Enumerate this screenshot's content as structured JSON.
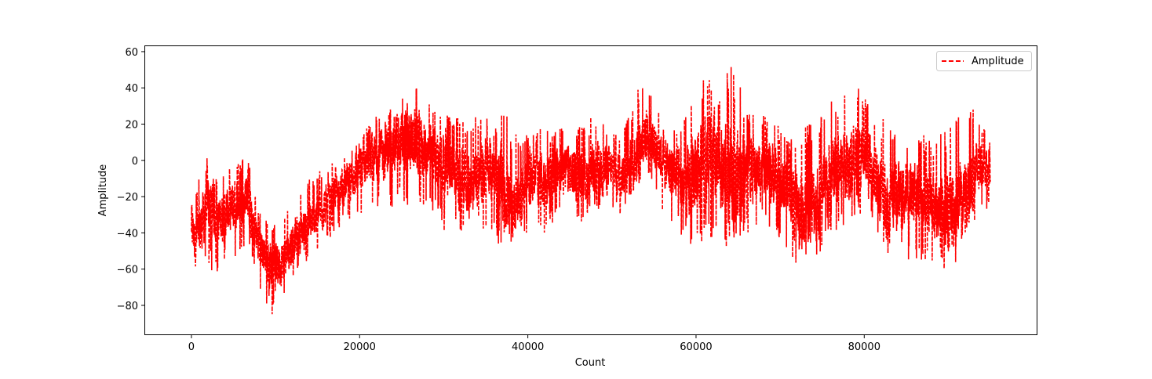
{
  "chart_data": {
    "type": "line",
    "title": "",
    "xlabel": "Count",
    "ylabel": "Amplitude",
    "xlim": [
      -5500,
      100500
    ],
    "ylim": [
      -96,
      63
    ],
    "xticks": [
      0,
      20000,
      40000,
      60000,
      80000
    ],
    "yticks": [
      -80,
      -60,
      -40,
      -20,
      0,
      20,
      40,
      60
    ],
    "grid": false,
    "legend_position": "top-right",
    "series": [
      {
        "name": "Amplitude",
        "color": "#ff0000",
        "linestyle": "dashed",
        "n_points": 95000,
        "envelope_x": [
          0,
          500,
          1000,
          1500,
          2000,
          2500,
          3000,
          4000,
          5000,
          6000,
          6500,
          7000,
          8000,
          9000,
          10000,
          11000,
          12000,
          13000,
          14000,
          15000,
          16000,
          17000,
          18000,
          19000,
          20000,
          21000,
          22000,
          23000,
          24000,
          25000,
          26000,
          27000,
          28000,
          29000,
          30000,
          31000,
          32000,
          33000,
          34000,
          35000,
          36000,
          37000,
          38000,
          39000,
          40000,
          41000,
          42000,
          43000,
          44000,
          45000,
          46000,
          47000,
          48000,
          49000,
          50000,
          51000,
          52000,
          53000,
          54000,
          55000,
          56000,
          57000,
          58000,
          59000,
          60000,
          61000,
          62000,
          63000,
          64000,
          65000,
          66000,
          67000,
          68000,
          69000,
          70000,
          71000,
          72000,
          73000,
          74000,
          75000,
          76000,
          77000,
          78000,
          79000,
          80000,
          81000,
          82000,
          83000,
          84000,
          85000,
          86000,
          87000,
          88000,
          89000,
          90000,
          91000,
          92000,
          93000,
          94000,
          95000
        ],
        "envelope_mean": [
          -35,
          -45,
          -40,
          -30,
          -20,
          -25,
          -35,
          -30,
          -25,
          -25,
          -15,
          -30,
          -45,
          -55,
          -58,
          -55,
          -45,
          -40,
          -35,
          -30,
          -25,
          -18,
          -15,
          -10,
          -5,
          0,
          2,
          5,
          8,
          10,
          12,
          8,
          5,
          2,
          0,
          -5,
          -10,
          -12,
          -10,
          -5,
          -5,
          -15,
          -25,
          -20,
          -10,
          -10,
          -12,
          -8,
          -5,
          -5,
          -10,
          -10,
          -8,
          -5,
          -5,
          -8,
          -5,
          5,
          15,
          10,
          0,
          -5,
          -10,
          -15,
          -5,
          0,
          0,
          -5,
          -10,
          -10,
          -5,
          -5,
          -5,
          -5,
          -15,
          -15,
          -25,
          -30,
          -25,
          -20,
          -10,
          -5,
          0,
          0,
          0,
          -5,
          -20,
          -25,
          -20,
          -20,
          -15,
          -20,
          -25,
          -30,
          -30,
          -25,
          -20,
          -10,
          0,
          -10
        ],
        "envelope_max": [
          -20,
          -15,
          -5,
          5,
          8,
          -5,
          -10,
          -5,
          0,
          0,
          5,
          -5,
          -25,
          -30,
          -35,
          -30,
          -25,
          -15,
          -10,
          -5,
          -5,
          0,
          5,
          10,
          15,
          20,
          25,
          30,
          35,
          40,
          35,
          45,
          35,
          30,
          25,
          25,
          25,
          20,
          25,
          25,
          15,
          30,
          20,
          15,
          15,
          15,
          20,
          15,
          20,
          15,
          20,
          20,
          30,
          25,
          15,
          15,
          25,
          40,
          50,
          35,
          20,
          20,
          25,
          30,
          40,
          45,
          55,
          40,
          55,
          50,
          30,
          25,
          25,
          30,
          20,
          10,
          20,
          25,
          25,
          30,
          40,
          35,
          40,
          43,
          35,
          30,
          25,
          20,
          15,
          10,
          15,
          15,
          10,
          15,
          20,
          25,
          30,
          35,
          20,
          10
        ],
        "envelope_min": [
          -70,
          -62,
          -60,
          -55,
          -60,
          -63,
          -62,
          -55,
          -55,
          -50,
          -45,
          -55,
          -70,
          -80,
          -89,
          -75,
          -70,
          -60,
          -55,
          -50,
          -45,
          -40,
          -35,
          -35,
          -30,
          -30,
          -25,
          -30,
          -25,
          -25,
          -30,
          -25,
          -25,
          -30,
          -40,
          -45,
          -40,
          -40,
          -35,
          -40,
          -45,
          -50,
          -45,
          -45,
          -42,
          -35,
          -40,
          -35,
          -30,
          -35,
          -35,
          -35,
          -30,
          -30,
          -30,
          -30,
          -25,
          -15,
          -10,
          -15,
          -30,
          -35,
          -40,
          -45,
          -50,
          -45,
          -50,
          -45,
          -53,
          -50,
          -40,
          -40,
          -35,
          -40,
          -45,
          -50,
          -60,
          -55,
          -55,
          -50,
          -45,
          -40,
          -35,
          -30,
          -30,
          -35,
          -50,
          -55,
          -55,
          -55,
          -55,
          -60,
          -55,
          -60,
          -67,
          -55,
          -45,
          -40,
          -30,
          -25
        ]
      }
    ]
  }
}
